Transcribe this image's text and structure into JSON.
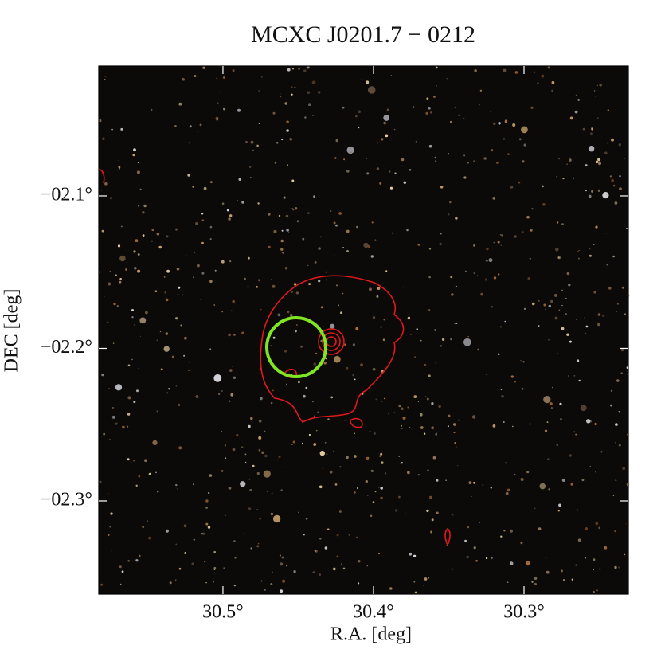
{
  "chart_data": {
    "type": "image",
    "title": "MCXC J0201.7 − 0212",
    "x_label": "R.A. [deg]",
    "y_label": "DEC [deg]",
    "xlim": [
      30.5825,
      30.2307
    ],
    "ylim": [
      -2.3611,
      -2.0149
    ],
    "xticks": [
      {
        "value": 30.5,
        "label": "30.5°"
      },
      {
        "value": 30.4,
        "label": "30.4°"
      },
      {
        "value": 30.3,
        "label": "30.3°"
      }
    ],
    "yticks": [
      {
        "value": -2.1,
        "label": "−02.1°"
      },
      {
        "value": -2.2,
        "label": "−02.2°"
      },
      {
        "value": -2.3,
        "label": "−02.3°"
      }
    ]
  }
}
